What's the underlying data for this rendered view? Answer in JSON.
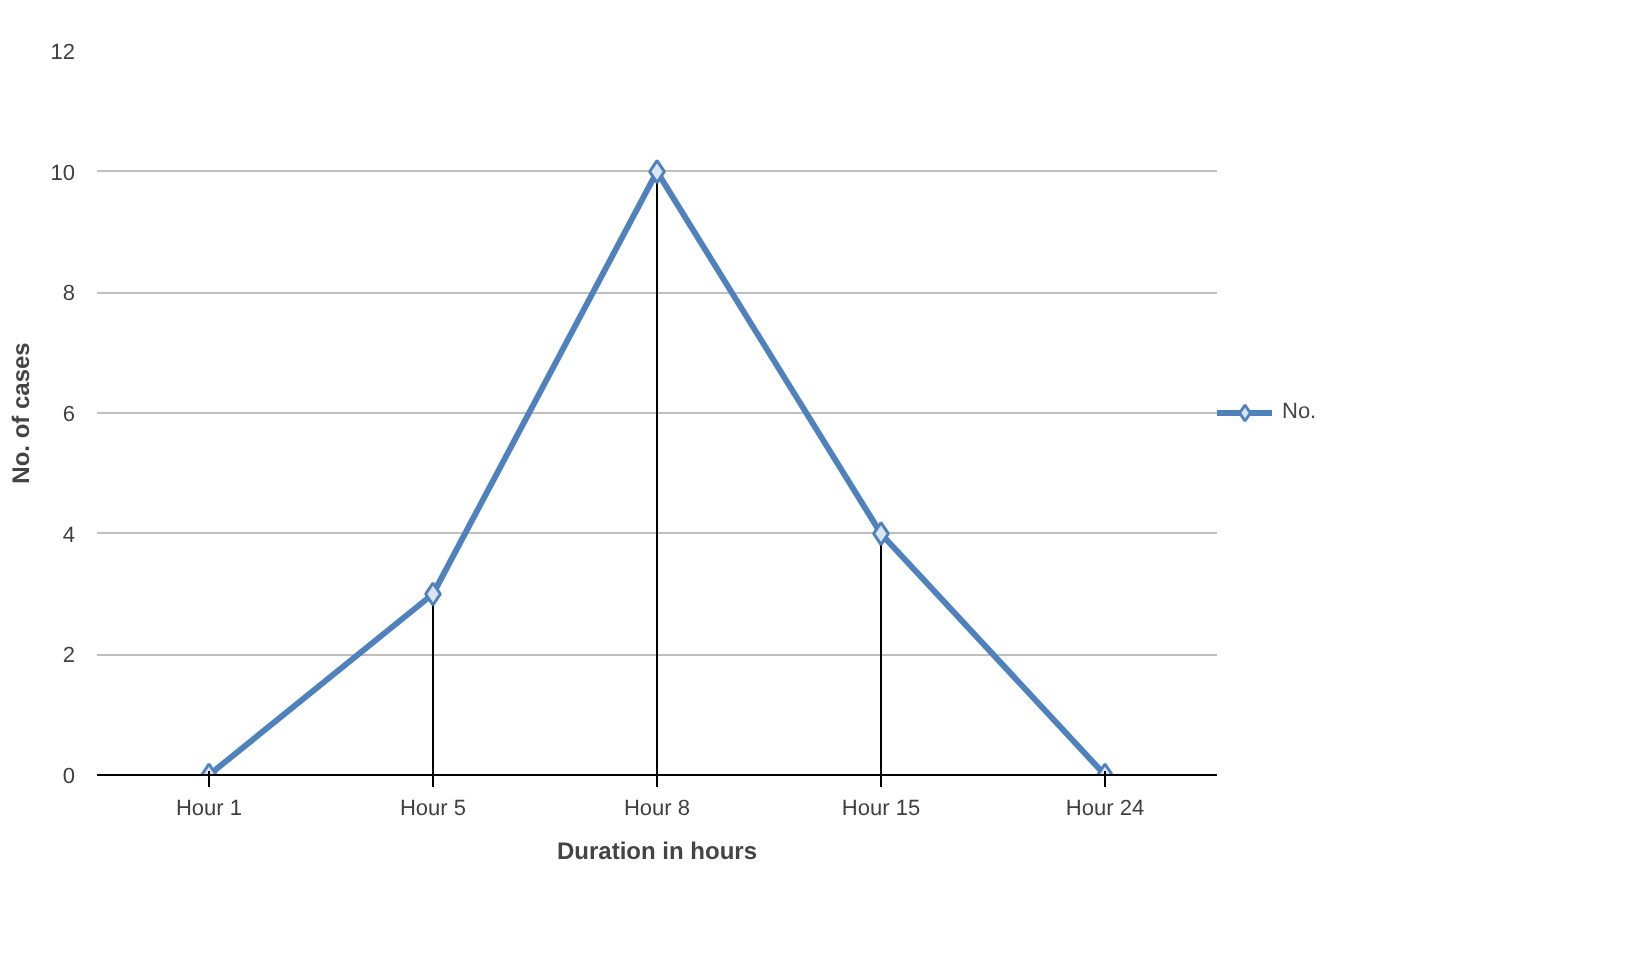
{
  "chart_data": {
    "type": "line",
    "xlabel": "Duration in hours",
    "ylabel": "No. of cases",
    "categories": [
      "Hour 1",
      "Hour 5",
      "Hour 8",
      "Hour 15",
      "Hour 24"
    ],
    "series": [
      {
        "name": "No.",
        "color": "#4f81bd",
        "values": [
          0,
          3,
          10,
          4,
          0
        ],
        "errors": [
          null,
          [
            0,
            3
          ],
          [
            0,
            10
          ],
          [
            0,
            4
          ],
          null
        ]
      }
    ],
    "ylim": [
      0,
      12
    ],
    "yticks": [
      0,
      2,
      4,
      6,
      8,
      10,
      12
    ],
    "grid": "y",
    "legend": "right",
    "marker": "diamond",
    "line_style": "solid"
  }
}
